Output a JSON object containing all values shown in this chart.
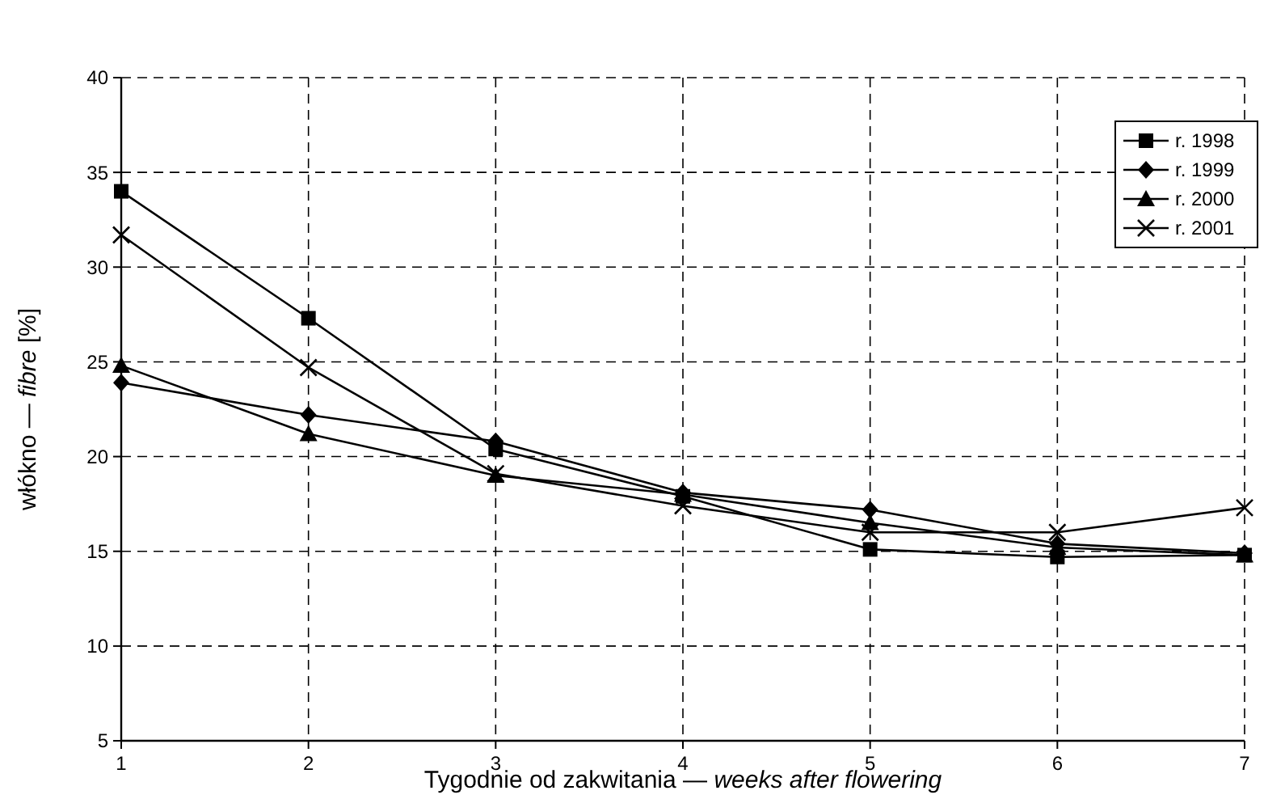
{
  "chart_data": {
    "type": "line",
    "xlabel": "Tygodnie od zakwitania — weeks after flowering",
    "ylabel": "włókno — fibre [%]",
    "x": [
      1,
      2,
      3,
      4,
      5,
      6,
      7
    ],
    "xlim": [
      1,
      7
    ],
    "xticks": [
      1,
      2,
      3,
      4,
      5,
      6,
      7
    ],
    "ylim": [
      5,
      40
    ],
    "yticks": [
      5,
      10,
      15,
      20,
      25,
      30,
      35,
      40
    ],
    "grid": true,
    "legend": "top right",
    "line_style": "solid",
    "series": [
      {
        "name": "r. 1998",
        "color": "#000000",
        "marker": "square",
        "values": [
          34.0,
          27.3,
          20.4,
          17.9,
          15.1,
          14.7,
          14.8
        ]
      },
      {
        "name": "r. 1999",
        "color": "#000000",
        "marker": "diamond",
        "values": [
          23.9,
          22.2,
          20.8,
          18.1,
          17.2,
          15.4,
          14.9
        ]
      },
      {
        "name": "r. 2000",
        "color": "#000000",
        "marker": "triangle",
        "values": [
          24.8,
          21.2,
          19.0,
          18.0,
          16.5,
          15.2,
          14.8
        ]
      },
      {
        "name": "r. 2001",
        "color": "#000000",
        "marker": "cross",
        "values": [
          31.7,
          24.7,
          19.1,
          17.4,
          16.0,
          16.0,
          17.3
        ]
      }
    ]
  }
}
